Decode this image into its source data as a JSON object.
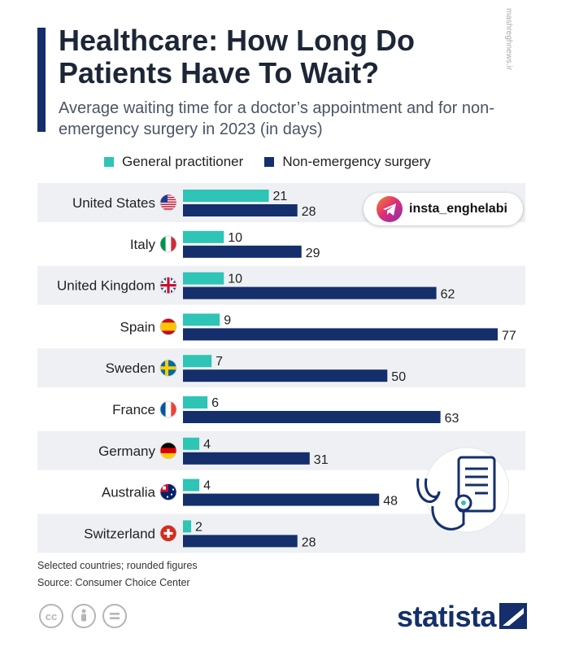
{
  "header": {
    "title": "Healthcare: How Long Do Patients Have To Wait?",
    "subtitle": "Average waiting time for a doctor’s appointment and for non-emergency surgery in 2023 (in days)"
  },
  "colors": {
    "gp": "#2ec4b6",
    "surgery": "#142f6b",
    "row_bg": "#eef0f4",
    "accent": "#142f6b"
  },
  "chart_data": {
    "type": "bar",
    "orientation": "horizontal",
    "title": "Healthcare: How Long Do Patients Have To Wait?",
    "categories": [
      "United States",
      "Italy",
      "United Kingdom",
      "Spain",
      "Sweden",
      "France",
      "Germany",
      "Australia",
      "Switzerland"
    ],
    "flags": [
      "us-flag-icon",
      "italy-flag-icon",
      "uk-flag-icon",
      "spain-flag-icon",
      "sweden-flag-icon",
      "france-flag-icon",
      "germany-flag-icon",
      "australia-flag-icon",
      "switzerland-flag-icon"
    ],
    "series": [
      {
        "name": "General practitioner",
        "values": [
          21,
          10,
          10,
          9,
          7,
          6,
          4,
          4,
          2
        ]
      },
      {
        "name": "Non-emergency surgery",
        "values": [
          28,
          29,
          62,
          77,
          50,
          63,
          31,
          48,
          28
        ]
      }
    ],
    "xlim": [
      0,
      77
    ],
    "xlabel": "",
    "ylabel": "",
    "legend_position": "top"
  },
  "footer": {
    "note": "Selected countries; rounded figures",
    "source": "Source: Consumer Choice Center",
    "logo": "statista"
  },
  "overlay": {
    "handle": "insta_enghelabi"
  },
  "watermark": "mashreghnews.ir"
}
